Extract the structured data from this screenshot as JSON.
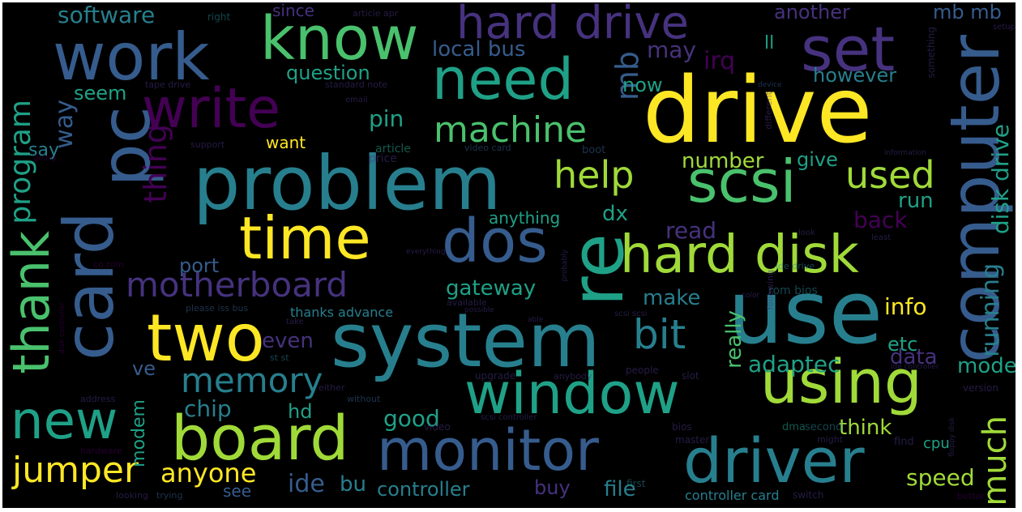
{
  "palette": {
    "background": "#000000",
    "frame": "#ffffff",
    "yellow": "#fde725",
    "lime": "#a0da39",
    "green": "#4ac16d",
    "teal": "#1fa187",
    "tealblue": "#277f8e",
    "blue": "#365c8d",
    "indigo": "#46327e",
    "purple": "#440154"
  },
  "words": {
    "drive": "drive",
    "problem": "problem",
    "use": "use",
    "system": "system",
    "window": "window",
    "computer": "computer",
    "card": "card",
    "pc": "pc",
    "know": "know",
    "work": "work",
    "write": "write",
    "need": "need",
    "hard_drive": "hard drive",
    "set": "set",
    "time": "time",
    "two": "two",
    "board": "board",
    "monitor": "monitor",
    "driver": "driver",
    "hard_disk": "hard disk",
    "scsi": "scsi",
    "dos": "dos",
    "re": "re",
    "thank": "thank",
    "new": "new",
    "using": "using",
    "motherboard": "motherboard",
    "machine": "machine",
    "memory": "memory",
    "jumper": "jumper",
    "anyone": "anyone",
    "bit": "bit",
    "help": "help",
    "used": "used",
    "much": "much",
    "program": "program",
    "thing": "thing",
    "mb": "mb",
    "software": "software",
    "question": "question",
    "local_bus": "local bus",
    "seem": "seem",
    "way": "way",
    "pin": "pin",
    "say": "say",
    "may": "may",
    "now": "now",
    "irq": "irq",
    "however": "however",
    "another": "another",
    "mb_mb": "mb mb",
    "disk_drive": "disk drive",
    "since": "since",
    "want": "want",
    "number": "number",
    "give": "give",
    "run": "run",
    "back": "back",
    "read": "read",
    "dx": "dx",
    "anything": "anything",
    "port": "port",
    "gateway": "gateway",
    "make": "make",
    "info": "info",
    "etc": "etc",
    "running": "running",
    "adaptec": "adaptec",
    "data": "data",
    "mode": "mode",
    "even": "even",
    "ve": "ve",
    "chip": "chip",
    "hd": "hd",
    "good": "good",
    "think": "think",
    "really": "really",
    "speed": "speed",
    "controller": "controller",
    "ide": "ide",
    "bu": "bu",
    "buy": "buy",
    "file": "file",
    "see": "see",
    "modem": "modem",
    "thanks_advance": "thanks advance",
    "controller_card": "controller card",
    "cpu": "cpu",
    "ll": "ll",
    "article": "article",
    "right": "right",
    "video_card": "video card",
    "price": "price",
    "tape_drive": "tape drive",
    "standard": "standard note",
    "support": "support",
    "boot": "boot",
    "different": "different",
    "something": "something",
    "rom_bios": "rom bios",
    "ide_drive": "ide drive",
    "first": "first",
    "bios": "bios",
    "master": "master",
    "second": "second",
    "find": "find",
    "dma": "dma",
    "switch": "switch",
    "version": "version",
    "upgrade": "upgrade",
    "anybody": "anybody",
    "people": "people",
    "slot": "slot",
    "either": "either",
    "without": "without",
    "address": "address",
    "looking": "looking",
    "trying": "trying",
    "better": "better",
    "hardware": "hardware",
    "co_rom": "co rom",
    "available": "available",
    "following": "following",
    "scsi_scsi": "scsi scsi",
    "sit_st": "st st",
    "email": "email",
    "setup": "setup",
    "apr": "article apr",
    "going": "going",
    "everything": "everything",
    "probably": "probably",
    "disk_controller": "disk controller",
    "look": "look",
    "least": "least",
    "please": "please iss bus",
    "possible": "possible",
    "able": "able",
    "information": "information",
    "device": "device",
    "might": "might",
    "scsi_controller": "scsi controller",
    "video": "video",
    "take": "take",
    "ide_controller": "ide controller",
    "floppy": "floppy disk",
    "color": "color"
  }
}
